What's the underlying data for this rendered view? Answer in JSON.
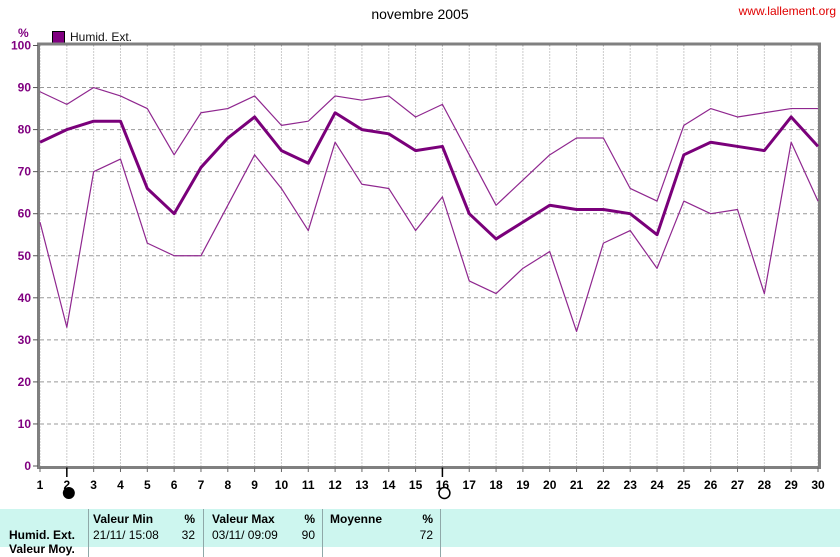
{
  "header": {
    "title": "novembre 2005",
    "website": "www.lallement.org"
  },
  "legend": {
    "label": "Humid. Ext."
  },
  "y_axis": {
    "unit": "%"
  },
  "moon_markers": [
    {
      "day": 2,
      "phase": "new-moon"
    },
    {
      "day": 16,
      "phase": "full-moon"
    }
  ],
  "chart_data": {
    "type": "line",
    "title": "novembre 2005",
    "ylabel": "%",
    "ylim": [
      0,
      100
    ],
    "y_ticks": [
      0,
      10,
      20,
      30,
      40,
      50,
      60,
      70,
      80,
      90,
      100
    ],
    "grid": true,
    "legend_position": "top-left",
    "categories": [
      "1",
      "2",
      "3",
      "4",
      "5",
      "6",
      "7",
      "8",
      "9",
      "10",
      "11",
      "12",
      "13",
      "14",
      "15",
      "16",
      "17",
      "18",
      "19",
      "20",
      "21",
      "22",
      "23",
      "24",
      "25",
      "26",
      "27",
      "28",
      "29",
      "30"
    ],
    "series": [
      {
        "name": "Humid. Ext. max",
        "role": "max",
        "style": "thin",
        "values": [
          89,
          86,
          90,
          88,
          85,
          74,
          84,
          85,
          88,
          81,
          82,
          88,
          87,
          88,
          83,
          86,
          74,
          62,
          68,
          74,
          78,
          78,
          66,
          63,
          81,
          85,
          83,
          84,
          85,
          85
        ]
      },
      {
        "name": "Humid. Ext. moyenne",
        "role": "mean",
        "style": "thick",
        "values": [
          77,
          80,
          82,
          82,
          66,
          60,
          71,
          78,
          83,
          75,
          72,
          84,
          80,
          79,
          75,
          76,
          60,
          54,
          58,
          62,
          61,
          61,
          60,
          55,
          74,
          77,
          76,
          75,
          83,
          76
        ]
      },
      {
        "name": "Humid. Ext. min",
        "role": "min",
        "style": "thin",
        "values": [
          58,
          33,
          70,
          73,
          53,
          50,
          50,
          62,
          74,
          66,
          56,
          77,
          67,
          66,
          56,
          64,
          44,
          41,
          47,
          51,
          32,
          53,
          56,
          47,
          63,
          60,
          61,
          41,
          77,
          63
        ]
      }
    ]
  },
  "summary_table": {
    "row_label": "Humid. Ext.",
    "next_row_label": "Valeur Moy.",
    "columns": [
      {
        "header": "Valeur Min",
        "unit": "%",
        "timestamp": "21/11/ 15:08",
        "value": "32"
      },
      {
        "header": "Valeur Max",
        "unit": "%",
        "timestamp": "03/11/ 09:09",
        "value": "90"
      },
      {
        "header": "Moyenne",
        "unit": "%",
        "timestamp": "",
        "value": "72"
      }
    ]
  },
  "colors": {
    "series_thin": "#8f278f",
    "series_thick": "#7a007a",
    "axis_label_purple": "#800080",
    "grid": "#999999",
    "plot_border": "#808080",
    "url_red": "#e00000",
    "table_bg": "#cdf6ef"
  }
}
